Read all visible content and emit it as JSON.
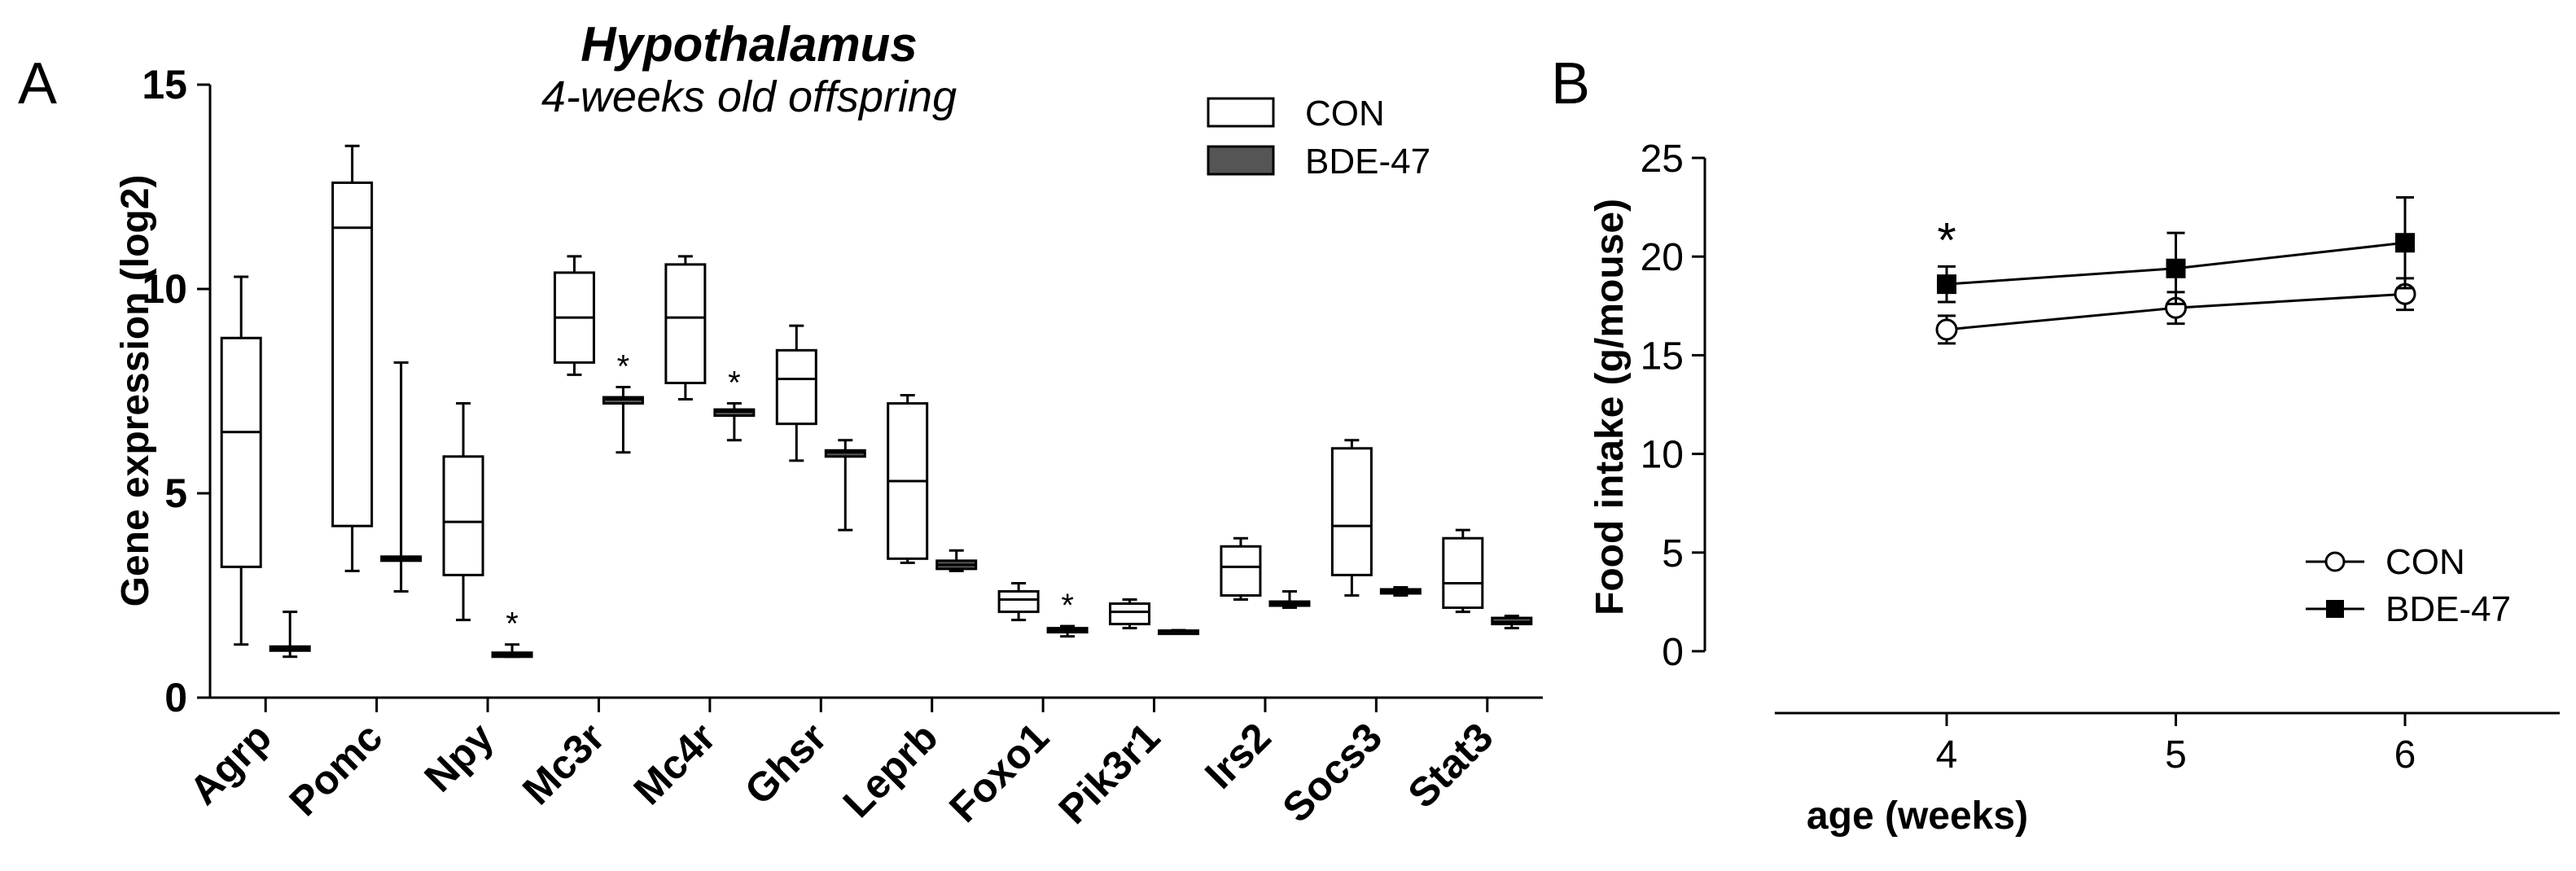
{
  "chart_data": [
    {
      "panel": "A",
      "type": "box",
      "title": "Hypothalamus",
      "subtitle": "4-weeks old offspring",
      "ylabel": "Gene expression (log2)",
      "xlabel": "",
      "ylim": [
        0,
        15
      ],
      "yticks": [
        0,
        5,
        10,
        15
      ],
      "legend_position": "top-right",
      "categories": [
        "Agrp",
        "Pomc",
        "Npy",
        "Mc3r",
        "Mc4r",
        "Ghsr",
        "Leprb",
        "Foxo1",
        "Pik3r1",
        "Irs2",
        "Socs3",
        "Stat3"
      ],
      "series": [
        {
          "name": "CON",
          "fill": "#ffffff",
          "boxes": [
            {
              "min": 1.3,
              "q1": 3.2,
              "median": 6.5,
              "q3": 8.8,
              "max": 10.3
            },
            {
              "min": 3.1,
              "q1": 4.2,
              "median": 11.5,
              "q3": 12.6,
              "max": 13.5
            },
            {
              "min": 1.9,
              "q1": 3.0,
              "median": 4.3,
              "q3": 5.9,
              "max": 7.2
            },
            {
              "min": 7.9,
              "q1": 8.2,
              "median": 9.3,
              "q3": 10.4,
              "max": 10.8
            },
            {
              "min": 7.3,
              "q1": 7.7,
              "median": 9.3,
              "q3": 10.6,
              "max": 10.8
            },
            {
              "min": 5.8,
              "q1": 6.7,
              "median": 7.8,
              "q3": 8.5,
              "max": 9.1
            },
            {
              "min": 3.3,
              "q1": 3.4,
              "median": 5.3,
              "q3": 7.2,
              "max": 7.4
            },
            {
              "min": 1.9,
              "q1": 2.1,
              "median": 2.4,
              "q3": 2.6,
              "max": 2.8
            },
            {
              "min": 1.7,
              "q1": 1.8,
              "median": 2.1,
              "q3": 2.3,
              "max": 2.4
            },
            {
              "min": 2.4,
              "q1": 2.5,
              "median": 3.2,
              "q3": 3.7,
              "max": 3.9
            },
            {
              "min": 2.5,
              "q1": 3.0,
              "median": 4.2,
              "q3": 6.1,
              "max": 6.3
            },
            {
              "min": 2.1,
              "q1": 2.2,
              "median": 2.8,
              "q3": 3.9,
              "max": 4.1
            }
          ]
        },
        {
          "name": "BDE-47",
          "fill": "#555555",
          "boxes": [
            {
              "min": 1.0,
              "q1": 1.15,
              "median": 1.2,
              "q3": 1.25,
              "max": 2.1
            },
            {
              "min": 2.6,
              "q1": 3.35,
              "median": 3.4,
              "q3": 3.45,
              "max": 8.2
            },
            {
              "min": 1.0,
              "q1": 1.0,
              "median": 1.05,
              "q3": 1.1,
              "max": 1.3
            },
            {
              "min": 6.0,
              "q1": 7.2,
              "median": 7.3,
              "q3": 7.35,
              "max": 7.6
            },
            {
              "min": 6.3,
              "q1": 6.9,
              "median": 7.0,
              "q3": 7.05,
              "max": 7.2
            },
            {
              "min": 4.1,
              "q1": 5.9,
              "median": 6.0,
              "q3": 6.05,
              "max": 6.3
            },
            {
              "min": 3.1,
              "q1": 3.15,
              "median": 3.25,
              "q3": 3.35,
              "max": 3.6
            },
            {
              "min": 1.5,
              "q1": 1.6,
              "median": 1.65,
              "q3": 1.7,
              "max": 1.75
            },
            {
              "min": 1.6,
              "q1": 1.6,
              "median": 1.62,
              "q3": 1.64,
              "max": 1.65
            },
            {
              "min": 2.2,
              "q1": 2.25,
              "median": 2.3,
              "q3": 2.35,
              "max": 2.6
            },
            {
              "min": 2.5,
              "q1": 2.55,
              "median": 2.6,
              "q3": 2.65,
              "max": 2.7
            },
            {
              "min": 1.7,
              "q1": 1.8,
              "median": 1.85,
              "q3": 1.95,
              "max": 2.0
            }
          ]
        }
      ],
      "annotations": [
        {
          "text": "*",
          "category": "Npy"
        },
        {
          "text": "*",
          "category": "Mc3r"
        },
        {
          "text": "*",
          "category": "Mc4r"
        },
        {
          "text": "*",
          "category": "Foxo1"
        }
      ]
    },
    {
      "panel": "B",
      "type": "line",
      "title": "",
      "xlabel": "age (weeks)",
      "ylabel": "Food intake (g/mouse)",
      "x": [
        4,
        5,
        6
      ],
      "xlim": [
        3.25,
        6.7
      ],
      "ylim": [
        0,
        25
      ],
      "yticks": [
        0,
        5,
        10,
        15,
        20,
        25
      ],
      "legend_position": "bottom-right",
      "series": [
        {
          "name": "CON",
          "marker": "circle-open",
          "values": [
            16.3,
            17.4,
            18.1
          ],
          "errors": [
            0.7,
            0.8,
            0.8
          ]
        },
        {
          "name": "BDE-47",
          "marker": "square-filled",
          "values": [
            18.6,
            19.4,
            20.7
          ],
          "errors": [
            0.9,
            1.8,
            2.3
          ]
        }
      ],
      "annotations": [
        {
          "text": "*",
          "x": 4
        }
      ]
    }
  ]
}
